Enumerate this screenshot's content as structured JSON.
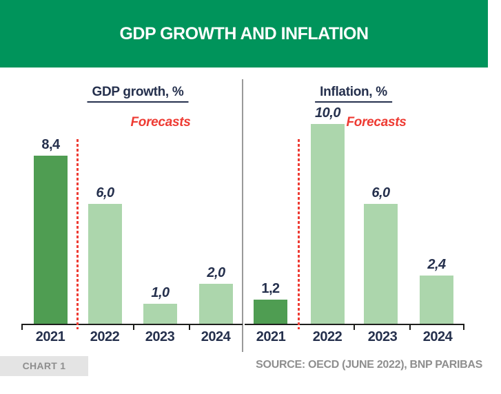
{
  "header": {
    "title": "GDP GROWTH AND INFLATION"
  },
  "footer": {
    "chart_label": "CHART 1",
    "source": "SOURCE: OECD (JUNE 2022), BNP PARIBAS"
  },
  "colors": {
    "header_bg": "#00945b",
    "header_fg": "#ffffff",
    "actual_bar": "#4f9d52",
    "forecast_bar": "#acd6ac",
    "red": "#ee3b33",
    "label": "#25304d",
    "axis": "#1d1d1b",
    "divider": "#999999",
    "badge_bg": "#e4e4e4",
    "footer_text": "#8e8e8e"
  },
  "chart_data": [
    {
      "type": "bar",
      "title": "GDP growth, %",
      "forecast_note": "Forecasts",
      "categories": [
        "2021",
        "2022",
        "2023",
        "2024"
      ],
      "values": [
        8.4,
        6.0,
        1.0,
        2.0
      ],
      "value_labels": [
        "8,4",
        "6,0",
        "1,0",
        "2,0"
      ],
      "forecast_from_index": 1,
      "ylabel": "%",
      "ylim": [
        0,
        10.5
      ],
      "grid": false,
      "legend": "none"
    },
    {
      "type": "bar",
      "title": "Inflation, %",
      "forecast_note": "Forecasts",
      "categories": [
        "2021",
        "2022",
        "2023",
        "2024"
      ],
      "values": [
        1.2,
        10.0,
        6.0,
        2.4
      ],
      "value_labels": [
        "1,2",
        "10,0",
        "6,0",
        "2,4"
      ],
      "forecast_from_index": 1,
      "ylabel": "%",
      "ylim": [
        0,
        10.5
      ],
      "grid": false,
      "legend": "none"
    }
  ]
}
